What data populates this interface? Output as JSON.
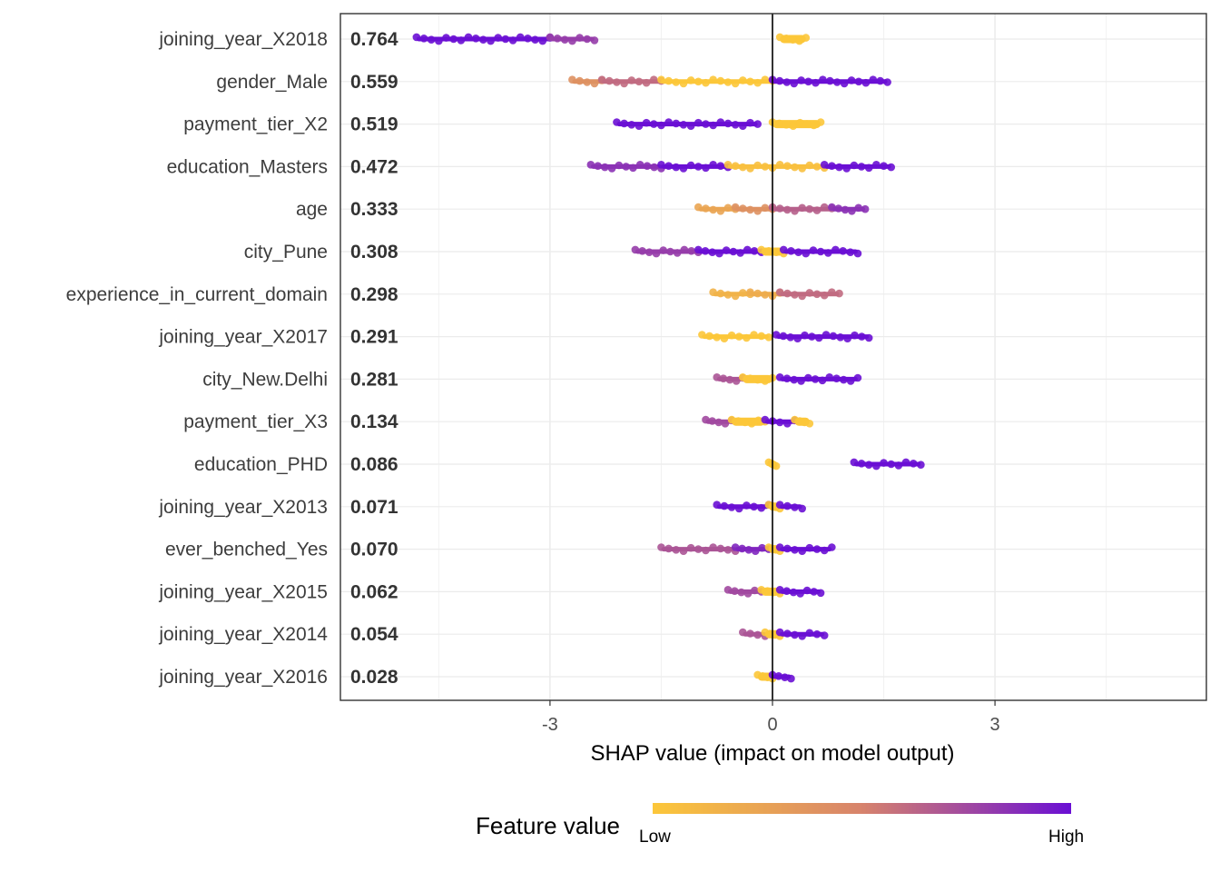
{
  "chart_data": {
    "type": "scatter",
    "subtype": "shap-summary-beeswarm",
    "xlabel": "SHAP value (impact on model output)",
    "x_ticks": [
      -3,
      0,
      3
    ],
    "xlim": [
      -5.4,
      5.8
    ],
    "grid": true,
    "legend": {
      "title": "Feature value",
      "low_label": "Low",
      "high_label": "High",
      "position": "bottom",
      "low_color": "#fcc73a",
      "mid_color": "#d7836c",
      "high_color": "#6a0fd4"
    },
    "features": [
      {
        "name": "joining_year_X2018",
        "importance": "0.764",
        "segments": [
          [
            -4.8,
            -3.0,
            1.0
          ],
          [
            -3.0,
            -2.4,
            0.8
          ],
          [
            0.1,
            0.45,
            0.0
          ]
        ]
      },
      {
        "name": "gender_Male",
        "importance": "0.559",
        "segments": [
          [
            -2.7,
            -2.3,
            0.4
          ],
          [
            -2.3,
            -1.5,
            0.6
          ],
          [
            -1.5,
            0.0,
            0.0
          ],
          [
            0.0,
            1.55,
            1.0
          ]
        ]
      },
      {
        "name": "payment_tier_X2",
        "importance": "0.519",
        "segments": [
          [
            -2.1,
            -0.2,
            1.0
          ],
          [
            0.0,
            0.65,
            0.0
          ]
        ]
      },
      {
        "name": "education_Masters",
        "importance": "0.472",
        "segments": [
          [
            -2.45,
            -1.5,
            0.85
          ],
          [
            -1.5,
            -0.6,
            1.0
          ],
          [
            -0.6,
            0.7,
            0.05
          ],
          [
            0.7,
            1.6,
            1.0
          ]
        ]
      },
      {
        "name": "age",
        "importance": "0.333",
        "segments": [
          [
            -1.0,
            -0.5,
            0.25
          ],
          [
            -0.5,
            0.0,
            0.4
          ],
          [
            0.0,
            0.8,
            0.65
          ],
          [
            0.8,
            1.25,
            0.85
          ]
        ]
      },
      {
        "name": "city_Pune",
        "importance": "0.308",
        "segments": [
          [
            -1.85,
            -1.0,
            0.8
          ],
          [
            -1.0,
            -0.15,
            1.0
          ],
          [
            -0.15,
            0.15,
            0.0
          ],
          [
            0.15,
            1.15,
            1.0
          ]
        ]
      },
      {
        "name": "experience_in_current_domain",
        "importance": "0.298",
        "segments": [
          [
            -0.8,
            -0.3,
            0.15
          ],
          [
            -0.3,
            0.1,
            0.2
          ],
          [
            0.1,
            0.9,
            0.6
          ]
        ]
      },
      {
        "name": "joining_year_X2017",
        "importance": "0.291",
        "segments": [
          [
            -0.95,
            -0.05,
            0.0
          ],
          [
            0.05,
            1.3,
            1.0
          ]
        ]
      },
      {
        "name": "city_New.Delhi",
        "importance": "0.281",
        "segments": [
          [
            -0.75,
            -0.4,
            0.7
          ],
          [
            -0.4,
            0.0,
            0.0
          ],
          [
            0.1,
            1.15,
            1.0
          ]
        ]
      },
      {
        "name": "payment_tier_X3",
        "importance": "0.134",
        "segments": [
          [
            -0.9,
            -0.55,
            0.75
          ],
          [
            -0.55,
            -0.1,
            0.0
          ],
          [
            -0.1,
            0.3,
            1.0
          ],
          [
            0.3,
            0.5,
            0.0
          ]
        ]
      },
      {
        "name": "education_PHD",
        "importance": "0.086",
        "segments": [
          [
            -0.05,
            0.05,
            0.0
          ],
          [
            1.1,
            2.0,
            1.0
          ]
        ]
      },
      {
        "name": "joining_year_X2013",
        "importance": "0.071",
        "segments": [
          [
            -0.75,
            -0.05,
            1.0
          ],
          [
            -0.05,
            0.1,
            0.0
          ],
          [
            0.1,
            0.4,
            1.0
          ]
        ]
      },
      {
        "name": "ever_benched_Yes",
        "importance": "0.070",
        "segments": [
          [
            -1.5,
            -0.5,
            0.7
          ],
          [
            -0.5,
            -0.05,
            0.9
          ],
          [
            -0.05,
            0.1,
            0.0
          ],
          [
            0.1,
            0.8,
            1.0
          ]
        ]
      },
      {
        "name": "joining_year_X2015",
        "importance": "0.062",
        "segments": [
          [
            -0.6,
            -0.15,
            0.75
          ],
          [
            -0.15,
            0.1,
            0.0
          ],
          [
            0.1,
            0.65,
            1.0
          ]
        ]
      },
      {
        "name": "joining_year_X2014",
        "importance": "0.054",
        "segments": [
          [
            -0.4,
            -0.1,
            0.7
          ],
          [
            -0.1,
            0.1,
            0.0
          ],
          [
            0.1,
            0.7,
            1.0
          ]
        ]
      },
      {
        "name": "joining_year_X2016",
        "importance": "0.028",
        "segments": [
          [
            -0.2,
            0.0,
            0.0
          ],
          [
            0.0,
            0.25,
            1.0
          ]
        ]
      }
    ]
  }
}
